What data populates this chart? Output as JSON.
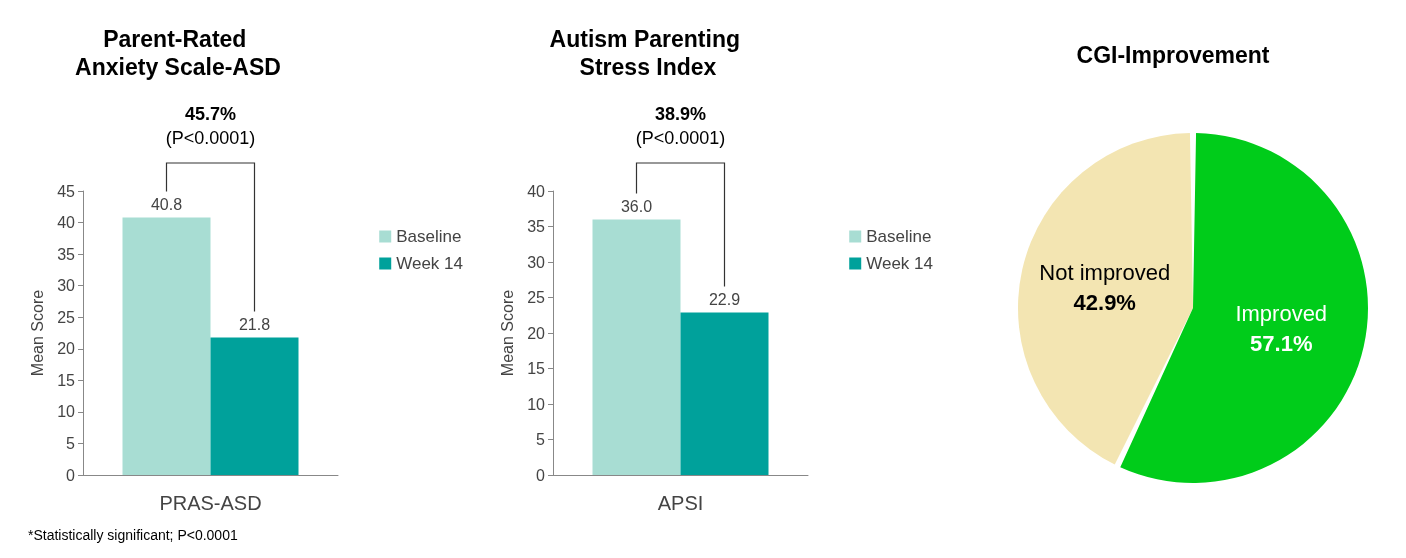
{
  "chart_data": [
    {
      "type": "bar",
      "title": "Parent-Rated Anxiety Scale-ASD",
      "ylabel": "Mean Score",
      "categories": [
        "PRAS-ASD"
      ],
      "ylim": [
        0,
        45
      ],
      "yticks": [
        0,
        5,
        10,
        15,
        20,
        25,
        30,
        35,
        40,
        45
      ],
      "grid": false,
      "legend": "right",
      "series": [
        {
          "name": "Baseline",
          "color": "#a8ddd3",
          "values": [
            40.8
          ],
          "value_labels": [
            "40.8"
          ]
        },
        {
          "name": "Week 14",
          "color": "#00a19b",
          "values": [
            21.8
          ],
          "value_labels": [
            "21.8"
          ]
        }
      ],
      "annotations": [
        "45.7%",
        "(P<0.0001)",
        "*Statistically significant; P<0.0001"
      ]
    },
    {
      "type": "bar",
      "title": "Autism Parenting Stress Index",
      "ylabel": "Mean Score",
      "categories": [
        "APSI"
      ],
      "ylim": [
        0,
        40
      ],
      "yticks": [
        0,
        5,
        10,
        15,
        20,
        25,
        30,
        35,
        40
      ],
      "grid": false,
      "legend": "right",
      "series": [
        {
          "name": "Baseline",
          "color": "#a8ddd3",
          "values": [
            36.0
          ],
          "value_labels": [
            "36.0"
          ]
        },
        {
          "name": "Week 14",
          "color": "#00a19b",
          "values": [
            22.9
          ],
          "value_labels": [
            "22.9"
          ]
        }
      ],
      "annotations": [
        "38.9%",
        "(P<0.0001)"
      ]
    },
    {
      "type": "pie",
      "title": "CGI-Improvement",
      "categories": [
        "Not improved",
        "Improved"
      ],
      "values": [
        42.9,
        57.1
      ],
      "colors": [
        "#f3e5b2",
        "#00cc1a"
      ],
      "value_labels": [
        "42.9%",
        "57.1%"
      ],
      "legend": false
    }
  ]
}
